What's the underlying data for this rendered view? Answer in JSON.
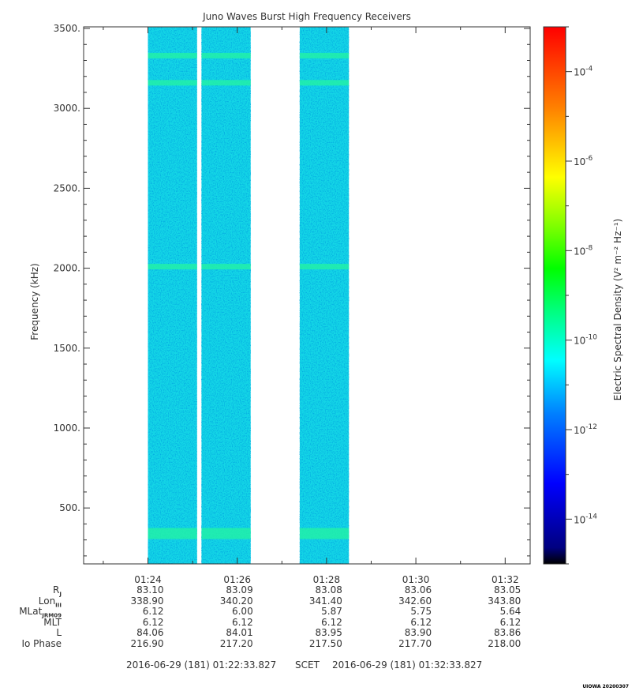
{
  "chart_data": {
    "type": "heatmap",
    "title": "Juno Waves Burst High Frequency Receivers",
    "ylabel": "Frequency (kHz)",
    "ylim": [
      150,
      3510
    ],
    "y_ticks": [
      "3500.",
      "3000.",
      "2500.",
      "2000.",
      "1500.",
      "1000.",
      "500."
    ],
    "y_tick_values": [
      3500,
      3000,
      2500,
      2000,
      1500,
      1000,
      500
    ],
    "x_ticks": [
      "01:24",
      "01:26",
      "01:28",
      "01:30",
      "01:32"
    ],
    "x_tick_minutes": [
      84,
      86,
      88,
      90,
      92
    ],
    "xlim_minutes": [
      82.56,
      92.56
    ],
    "data_intervals_minutes": [
      [
        84.0,
        85.1
      ],
      [
        85.2,
        86.3
      ],
      [
        87.4,
        88.5
      ]
    ],
    "emission_bands_khz": [
      3330,
      3160,
      2010,
      340
    ],
    "background_level_log10": -12,
    "colorbar": {
      "label": "Electric Spectral Density (V² m⁻² Hz⁻¹)",
      "exponents": [
        "-4",
        "-6",
        "-8",
        "-10",
        "-12",
        "-14"
      ],
      "exponent_values": [
        -4,
        -6,
        -8,
        -10,
        -12,
        -14
      ],
      "range_log10": [
        -15,
        -3
      ],
      "colors": [
        "#000080",
        "#0000ff",
        "#0080ff",
        "#00ffff",
        "#00ff80",
        "#00ff00",
        "#80ff00",
        "#ffff00",
        "#ff8000",
        "#ff0000"
      ]
    }
  },
  "ephemeris": {
    "rows": [
      {
        "label": "R",
        "sub": "J",
        "values": [
          "83.10",
          "83.09",
          "83.08",
          "83.06",
          "83.05"
        ]
      },
      {
        "label": "Lon",
        "sub": "III",
        "values": [
          "338.90",
          "340.20",
          "341.40",
          "342.60",
          "343.80"
        ]
      },
      {
        "label": "MLat",
        "sub": "JRM09",
        "values": [
          "6.12",
          "6.00",
          "5.87",
          "5.75",
          "5.64"
        ]
      },
      {
        "label": "MLT",
        "sub": "",
        "values": [
          "6.12",
          "6.12",
          "6.12",
          "6.12",
          "6.12"
        ]
      },
      {
        "label": "L",
        "sub": "",
        "values": [
          "84.06",
          "84.01",
          "83.95",
          "83.90",
          "83.86"
        ]
      },
      {
        "label": "Io Phase",
        "sub": "",
        "values": [
          "216.90",
          "217.20",
          "217.50",
          "217.70",
          "218.00"
        ]
      }
    ]
  },
  "footer": {
    "start": "2016-06-29 (181) 01:22:33.827",
    "scet": "SCET",
    "end": "2016-06-29 (181) 01:32:33.827"
  },
  "stamp": "UIOWA 20200307"
}
